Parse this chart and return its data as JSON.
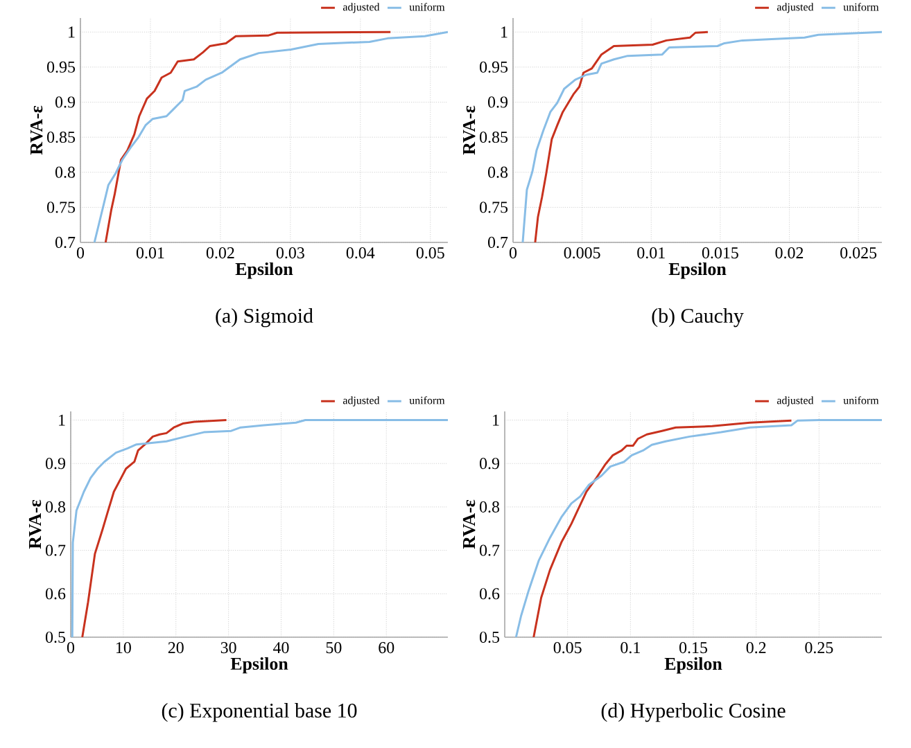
{
  "chart_data": [
    {
      "type": "line",
      "title": "(a) Sigmoid",
      "xlabel": "Epsilon",
      "ylabel": "RVA-ε",
      "legend": "top right",
      "grid": true,
      "xlim": [
        0,
        0.0525
      ],
      "ylim": [
        0.7,
        1.02
      ],
      "xticks": [
        0,
        0.01,
        0.02,
        0.03,
        0.04,
        0.05
      ],
      "yticks": [
        0.7,
        0.75,
        0.8,
        0.85,
        0.9,
        0.95,
        1
      ],
      "series": [
        {
          "name": "adjusted",
          "color": "#c8321e",
          "x": [
            0.0036,
            0.0044,
            0.0049,
            0.0058,
            0.0067,
            0.0077,
            0.0084,
            0.0095,
            0.0106,
            0.0116,
            0.0129,
            0.0139,
            0.0162,
            0.0175,
            0.0185,
            0.0208,
            0.0222,
            0.0268,
            0.0281,
            0.0443
          ],
          "values": [
            0.7,
            0.746,
            0.769,
            0.818,
            0.831,
            0.854,
            0.88,
            0.905,
            0.916,
            0.935,
            0.942,
            0.958,
            0.961,
            0.971,
            0.98,
            0.984,
            0.994,
            0.995,
            0.999,
            1.0
          ]
        },
        {
          "name": "uniform",
          "color": "#88bde6",
          "x": [
            0.002,
            0.0032,
            0.004,
            0.005,
            0.006,
            0.0073,
            0.0083,
            0.0093,
            0.0103,
            0.0123,
            0.0133,
            0.0146,
            0.0149,
            0.0166,
            0.0179,
            0.0202,
            0.0228,
            0.0255,
            0.0301,
            0.034,
            0.0413,
            0.0439,
            0.0492,
            0.0525
          ],
          "values": [
            0.7,
            0.749,
            0.782,
            0.798,
            0.818,
            0.837,
            0.85,
            0.867,
            0.876,
            0.88,
            0.89,
            0.903,
            0.916,
            0.922,
            0.932,
            0.942,
            0.961,
            0.97,
            0.975,
            0.983,
            0.986,
            0.991,
            0.994,
            1.0
          ]
        }
      ]
    },
    {
      "type": "line",
      "title": "(b) Cauchy",
      "xlabel": "Epsilon",
      "ylabel": "RVA-ε",
      "legend": "top right",
      "grid": true,
      "xlim": [
        0,
        0.0267
      ],
      "ylim": [
        0.7,
        1.02
      ],
      "xticks": [
        0,
        0.005,
        0.01,
        0.015,
        0.02,
        0.025
      ],
      "yticks": [
        0.7,
        0.75,
        0.8,
        0.85,
        0.9,
        0.95,
        1
      ],
      "series": [
        {
          "name": "adjusted",
          "color": "#c8321e",
          "x": [
            0.0016,
            0.0018,
            0.0021,
            0.0024,
            0.0028,
            0.0032,
            0.0036,
            0.004,
            0.0044,
            0.0048,
            0.0051,
            0.0057,
            0.0064,
            0.0073,
            0.0101,
            0.0111,
            0.0128,
            0.0132,
            0.0141
          ],
          "values": [
            0.7,
            0.736,
            0.765,
            0.798,
            0.847,
            0.867,
            0.886,
            0.899,
            0.912,
            0.922,
            0.942,
            0.948,
            0.968,
            0.98,
            0.982,
            0.988,
            0.992,
            0.999,
            1.0
          ]
        },
        {
          "name": "uniform",
          "color": "#88bde6",
          "x": [
            0.0007,
            0.001,
            0.0014,
            0.0017,
            0.0022,
            0.0027,
            0.0032,
            0.0037,
            0.0045,
            0.0053,
            0.0061,
            0.0064,
            0.0073,
            0.0083,
            0.0108,
            0.0113,
            0.0148,
            0.0153,
            0.0166,
            0.0211,
            0.0221,
            0.0267
          ],
          "values": [
            0.7,
            0.775,
            0.801,
            0.831,
            0.86,
            0.886,
            0.899,
            0.919,
            0.932,
            0.939,
            0.942,
            0.955,
            0.961,
            0.966,
            0.968,
            0.978,
            0.98,
            0.984,
            0.988,
            0.992,
            0.996,
            1.0
          ]
        }
      ]
    },
    {
      "type": "line",
      "title": "(c) Exponential base 10",
      "xlabel": "Epsilon",
      "ylabel": "RVA-ε",
      "legend": "top right",
      "grid": true,
      "xlim": [
        0,
        71.7
      ],
      "ylim": [
        0.5,
        1.02
      ],
      "xticks": [
        0,
        10,
        20,
        30,
        40,
        50,
        60
      ],
      "yticks": [
        0.5,
        0.6,
        0.7,
        0.8,
        0.9,
        1
      ],
      "series": [
        {
          "name": "adjusted",
          "color": "#c8321e",
          "x": [
            2.2,
            3.3,
            4.6,
            6.1,
            7.0,
            8.2,
            9.6,
            10.5,
            12.1,
            12.8,
            14.3,
            15.6,
            16.9,
            18.2,
            19.6,
            21.3,
            23.5,
            29.6
          ],
          "values": [
            0.5,
            0.581,
            0.692,
            0.75,
            0.787,
            0.835,
            0.867,
            0.888,
            0.904,
            0.93,
            0.946,
            0.962,
            0.967,
            0.97,
            0.983,
            0.992,
            0.996,
            1.0
          ]
        },
        {
          "name": "uniform",
          "color": "#88bde6",
          "x": [
            0.3,
            0.4,
            1.1,
            2.5,
            3.8,
            5.1,
            6.4,
            8.6,
            10.8,
            12.5,
            18.2,
            21.8,
            25.3,
            30.5,
            32.3,
            36.7,
            42.8,
            44.6,
            71.7
          ],
          "values": [
            0.5,
            0.718,
            0.792,
            0.835,
            0.867,
            0.888,
            0.904,
            0.925,
            0.935,
            0.944,
            0.951,
            0.962,
            0.972,
            0.975,
            0.983,
            0.988,
            0.994,
            1.0,
            1.0
          ]
        }
      ]
    },
    {
      "type": "line",
      "title": "(d) Hyperbolic Cosine",
      "xlabel": "Epsilon",
      "ylabel": "RVA-ε",
      "legend": "top right",
      "grid": true,
      "xlim": [
        0,
        0.3
      ],
      "ylim": [
        0.5,
        1.02
      ],
      "xticks": [
        0.05,
        0.1,
        0.15,
        0.2,
        0.25
      ],
      "yticks": [
        0.5,
        0.6,
        0.7,
        0.8,
        0.9,
        1
      ],
      "series": [
        {
          "name": "adjusted",
          "color": "#c8321e",
          "x": [
            0.023,
            0.029,
            0.036,
            0.045,
            0.053,
            0.058,
            0.065,
            0.073,
            0.08,
            0.086,
            0.093,
            0.097,
            0.102,
            0.106,
            0.113,
            0.125,
            0.136,
            0.165,
            0.195,
            0.228
          ],
          "values": [
            0.5,
            0.591,
            0.655,
            0.718,
            0.761,
            0.792,
            0.835,
            0.867,
            0.898,
            0.919,
            0.93,
            0.941,
            0.941,
            0.957,
            0.967,
            0.975,
            0.983,
            0.986,
            0.994,
            0.999
          ]
        },
        {
          "name": "uniform",
          "color": "#88bde6",
          "x": [
            0.009,
            0.013,
            0.019,
            0.027,
            0.036,
            0.045,
            0.053,
            0.06,
            0.067,
            0.077,
            0.084,
            0.095,
            0.101,
            0.11,
            0.117,
            0.128,
            0.147,
            0.172,
            0.195,
            0.228,
            0.233,
            0.25,
            0.3
          ],
          "values": [
            0.5,
            0.549,
            0.607,
            0.676,
            0.729,
            0.776,
            0.808,
            0.824,
            0.851,
            0.872,
            0.893,
            0.904,
            0.919,
            0.93,
            0.943,
            0.951,
            0.962,
            0.972,
            0.983,
            0.988,
            0.999,
            1.0,
            1.0
          ]
        }
      ]
    }
  ]
}
